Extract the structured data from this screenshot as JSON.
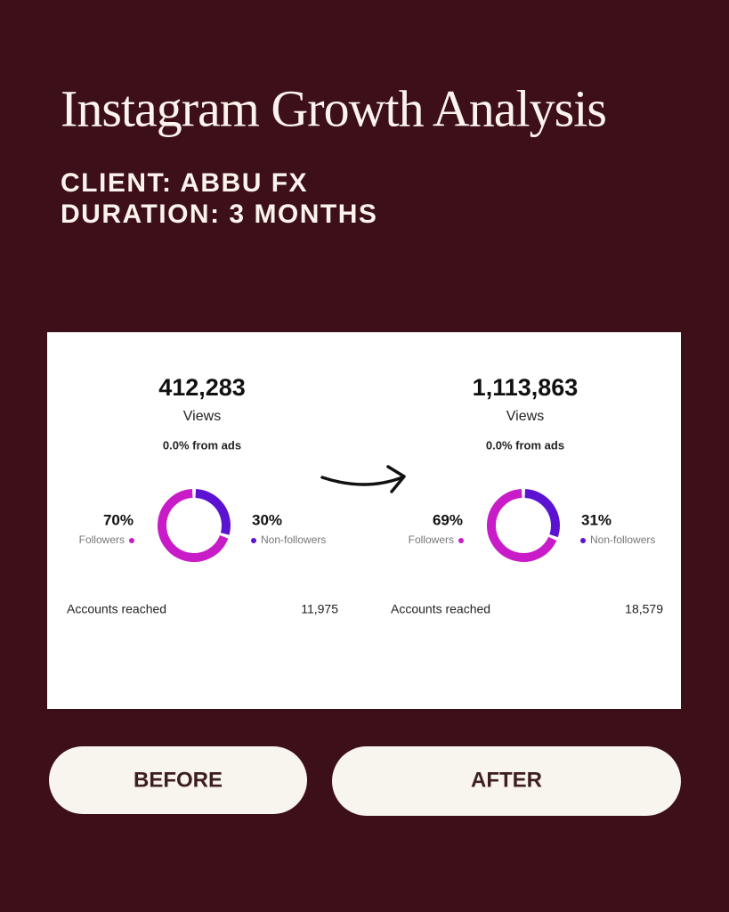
{
  "title": "Instagram Growth Analysis",
  "client": "CLIENT: ABBU FX",
  "duration": "DURATION: 3 MONTHS",
  "chart_data": [
    {
      "type": "donut",
      "views": "412,283",
      "views_label": "Views",
      "ads_note": "0.0% from ads",
      "categories": [
        "Followers",
        "Non-followers"
      ],
      "values": [
        70,
        30
      ],
      "value_labels": [
        "70%",
        "30%"
      ],
      "colors": [
        "#c81cc8",
        "#5b12d2"
      ],
      "accounts_label": "Accounts reached",
      "accounts_value": "11,975"
    },
    {
      "type": "donut",
      "views": "1,113,863",
      "views_label": "Views",
      "ads_note": "0.0% from ads",
      "categories": [
        "Followers",
        "Non-followers"
      ],
      "values": [
        69,
        31
      ],
      "value_labels": [
        "69%",
        "31%"
      ],
      "colors": [
        "#c81cc8",
        "#5b12d2"
      ],
      "accounts_label": "Accounts reached",
      "accounts_value": "18,579"
    }
  ],
  "buttons": [
    "BEFORE",
    "AFTER"
  ]
}
